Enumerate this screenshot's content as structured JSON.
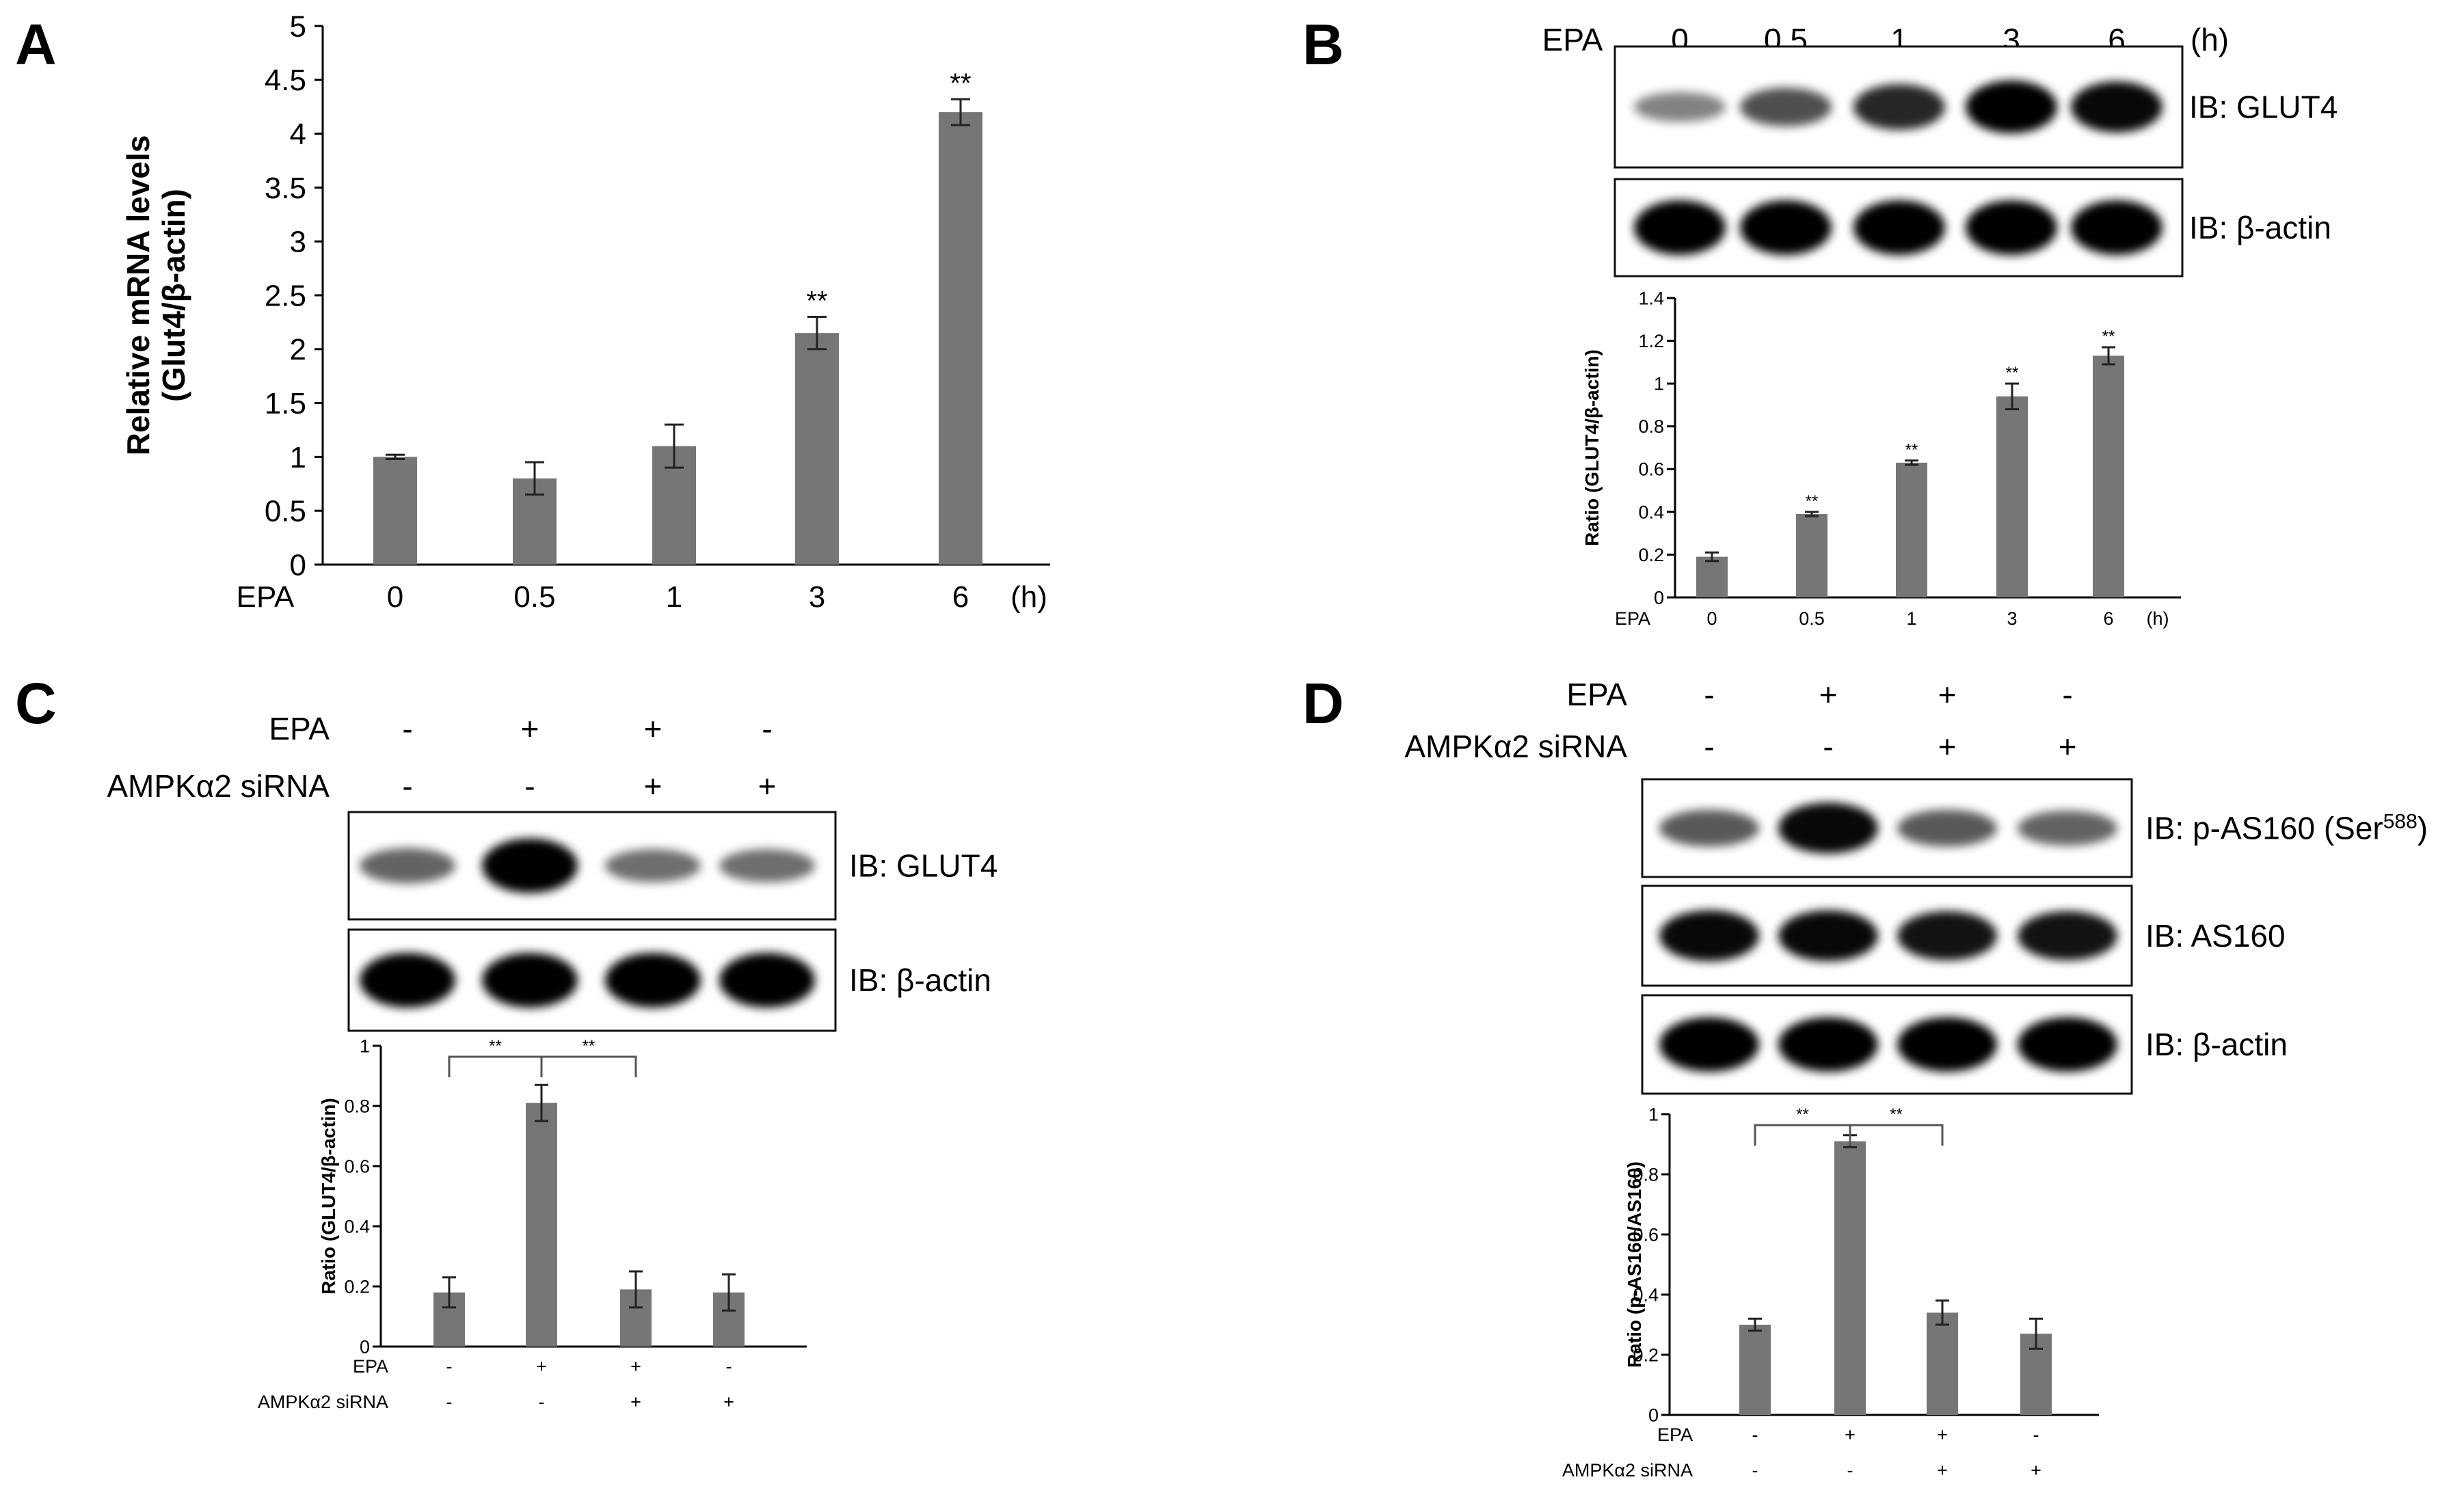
{
  "panel_labels": [
    "A",
    "B",
    "C",
    "D"
  ],
  "bar_color": "#767676",
  "chart_data": [
    {
      "id": "A",
      "type": "bar",
      "title": "",
      "ylabel_lines": [
        "Relative mRNA levels",
        "(Glut4/β-actin)"
      ],
      "xlabel": "",
      "categories": [
        "0",
        "0.5",
        "1",
        "3",
        "6"
      ],
      "values": [
        1.0,
        0.8,
        1.1,
        2.15,
        4.2
      ],
      "errors": [
        0.02,
        0.15,
        0.2,
        0.15,
        0.12
      ],
      "significance": [
        "",
        "",
        "",
        "**",
        "**"
      ],
      "ylim": [
        0,
        5
      ],
      "yticks": [
        "0",
        "0.5",
        "1",
        "1.5",
        "2",
        "2.5",
        "3",
        "3.5",
        "4",
        "4.5",
        "5"
      ],
      "row_labels": [
        {
          "name": "EPA",
          "suffix": "(h)"
        }
      ],
      "grid": false
    },
    {
      "id": "B",
      "type": "bar",
      "title": "",
      "ylabel_lines": [
        "Ratio (GLUT4/β-actin)"
      ],
      "xlabel": "",
      "categories": [
        "0",
        "0.5",
        "1",
        "3",
        "6"
      ],
      "values": [
        0.19,
        0.39,
        0.63,
        0.94,
        1.13
      ],
      "errors": [
        0.02,
        0.01,
        0.01,
        0.06,
        0.04
      ],
      "significance": [
        "",
        "**",
        "**",
        "**",
        "**"
      ],
      "ylim": [
        0,
        1.4
      ],
      "yticks": [
        "0",
        "0.2",
        "0.4",
        "0.6",
        "0.8",
        "1",
        "1.2",
        "1.4"
      ],
      "row_labels": [
        {
          "name": "EPA",
          "suffix": "(h)"
        }
      ],
      "grid": false
    },
    {
      "id": "C",
      "type": "bar",
      "title": "",
      "ylabel_lines": [
        "Ratio (GLUT4/β-actin)"
      ],
      "xlabel": "",
      "values": [
        0.18,
        0.81,
        0.19,
        0.18
      ],
      "errors": [
        0.05,
        0.06,
        0.06,
        0.06
      ],
      "ylim": [
        0,
        1
      ],
      "yticks": [
        "0",
        "0.2",
        "0.4",
        "0.6",
        "0.8",
        "1"
      ],
      "conditions": [
        {
          "name": "EPA",
          "values": [
            "-",
            "+",
            "+",
            "-"
          ]
        },
        {
          "name": "AMPKα2 siRNA",
          "values": [
            "-",
            "-",
            "+",
            "+"
          ]
        }
      ],
      "brackets": [
        {
          "from": 0,
          "to": 1,
          "label": "**"
        },
        {
          "from": 1,
          "to": 2,
          "label": "**"
        }
      ],
      "grid": false
    },
    {
      "id": "D",
      "type": "bar",
      "title": "",
      "ylabel_lines": [
        "Ratio (p-AS160/AS160)"
      ],
      "xlabel": "",
      "values": [
        0.3,
        0.91,
        0.34,
        0.27
      ],
      "errors": [
        0.02,
        0.02,
        0.04,
        0.05
      ],
      "ylim": [
        0,
        1
      ],
      "yticks": [
        "0",
        "0.2",
        "0.4",
        "0.6",
        "0.8",
        "1"
      ],
      "conditions": [
        {
          "name": "EPA",
          "values": [
            "-",
            "+",
            "+",
            "-"
          ]
        },
        {
          "name": "AMPKα2 siRNA",
          "values": [
            "-",
            "-",
            "+",
            "+"
          ]
        }
      ],
      "brackets": [
        {
          "from": 0,
          "to": 1,
          "label": "**"
        },
        {
          "from": 1,
          "to": 2,
          "label": "**"
        }
      ],
      "grid": false
    }
  ],
  "blots": {
    "B": {
      "header": {
        "name": "EPA",
        "values": [
          "0",
          "0.5",
          "1",
          "3",
          "6"
        ],
        "suffix": "(h)"
      },
      "rows": [
        {
          "label": "IB: GLUT4",
          "intensity": [
            0.3,
            0.55,
            0.75,
            0.95,
            0.9
          ]
        },
        {
          "label": "IB: β-actin",
          "intensity": [
            1,
            1,
            1,
            1,
            1
          ]
        }
      ]
    },
    "C": {
      "conditions": [
        {
          "name": "EPA",
          "values": [
            "-",
            "+",
            "+",
            "-"
          ]
        },
        {
          "name": "AMPKα2 siRNA",
          "values": [
            "-",
            "-",
            "+",
            "+"
          ]
        }
      ],
      "rows": [
        {
          "label": "IB: GLUT4",
          "intensity": [
            0.45,
            1,
            0.4,
            0.4
          ]
        },
        {
          "label": "IB: β-actin",
          "intensity": [
            1,
            1,
            1,
            1
          ]
        }
      ]
    },
    "D": {
      "conditions": [
        {
          "name": "EPA",
          "values": [
            "-",
            "+",
            "+",
            "-"
          ]
        },
        {
          "name": "AMPKα2 siRNA",
          "values": [
            "-",
            "-",
            "+",
            "+"
          ]
        }
      ],
      "rows": [
        {
          "label": "IB: p-AS160 (Ser",
          "label_sup": "588",
          "label_end": ")",
          "intensity": [
            0.5,
            0.9,
            0.5,
            0.45
          ]
        },
        {
          "label": "IB: AS160",
          "intensity": [
            0.9,
            0.9,
            0.85,
            0.85
          ]
        },
        {
          "label": "IB: β-actin",
          "intensity": [
            1,
            1,
            1,
            1
          ]
        }
      ]
    }
  }
}
